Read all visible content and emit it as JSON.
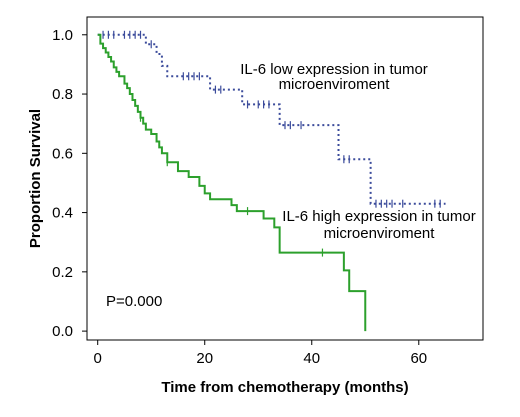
{
  "chart_data": {
    "type": "line",
    "subtype": "kaplan-meier step curve with censor marks",
    "xlabel": "Time from chemotherapy (months)",
    "ylabel": "Proportion Survival",
    "xlim": [
      -2,
      72
    ],
    "ylim": [
      -0.03,
      1.06
    ],
    "x_ticks": [
      0,
      20,
      40,
      60
    ],
    "y_ticks": [
      0.0,
      0.2,
      0.4,
      0.6,
      0.8,
      1.0
    ],
    "y_tick_labels": [
      "0.0",
      "0.2",
      "0.4",
      "0.6",
      "0.8",
      "1.0"
    ],
    "grid": false,
    "legend": "none",
    "series": [
      {
        "name": "IL-6 low expression in tumor microenviroment",
        "label_lines": [
          "IL-6 low expression in tumor",
          "microenviroment"
        ],
        "color": "#3b4b9b",
        "line_style": "dotted",
        "steps": [
          [
            0,
            1.0
          ],
          [
            9,
            0.968
          ],
          [
            11,
            0.935
          ],
          [
            12,
            0.895
          ],
          [
            13,
            0.86
          ],
          [
            21,
            0.815
          ],
          [
            27,
            0.765
          ],
          [
            34,
            0.695
          ],
          [
            45,
            0.58
          ],
          [
            51,
            0.43
          ],
          [
            65,
            0.43
          ]
        ],
        "censored": [
          [
            1,
            1.0
          ],
          [
            2,
            1.0
          ],
          [
            3,
            1.0
          ],
          [
            5,
            1.0
          ],
          [
            6,
            1.0
          ],
          [
            7,
            1.0
          ],
          [
            8,
            1.0
          ],
          [
            10,
            0.968
          ],
          [
            16,
            0.86
          ],
          [
            17,
            0.86
          ],
          [
            18,
            0.86
          ],
          [
            19,
            0.86
          ],
          [
            22,
            0.815
          ],
          [
            23,
            0.815
          ],
          [
            28,
            0.765
          ],
          [
            30,
            0.765
          ],
          [
            31,
            0.765
          ],
          [
            32,
            0.765
          ],
          [
            35,
            0.695
          ],
          [
            36,
            0.695
          ],
          [
            38,
            0.695
          ],
          [
            46,
            0.58
          ],
          [
            47,
            0.58
          ],
          [
            52,
            0.43
          ],
          [
            53,
            0.43
          ],
          [
            54,
            0.43
          ],
          [
            55,
            0.43
          ],
          [
            57,
            0.43
          ],
          [
            63,
            0.43
          ],
          [
            64,
            0.43
          ]
        ]
      },
      {
        "name": "IL-6 high expression in tumor microenviroment",
        "label_lines": [
          "IL-6 high expression in tumor",
          "microenviroment"
        ],
        "color": "#2ca02c",
        "line_style": "solid",
        "steps": [
          [
            0,
            1.0
          ],
          [
            0.5,
            0.97
          ],
          [
            1,
            0.955
          ],
          [
            1.5,
            0.94
          ],
          [
            2,
            0.925
          ],
          [
            2.5,
            0.91
          ],
          [
            3,
            0.89
          ],
          [
            3.5,
            0.875
          ],
          [
            4,
            0.86
          ],
          [
            5,
            0.835
          ],
          [
            5.5,
            0.82
          ],
          [
            6,
            0.8
          ],
          [
            6.5,
            0.78
          ],
          [
            7,
            0.76
          ],
          [
            7.5,
            0.74
          ],
          [
            8,
            0.72
          ],
          [
            8.5,
            0.7
          ],
          [
            9,
            0.68
          ],
          [
            10,
            0.665
          ],
          [
            11,
            0.64
          ],
          [
            11.5,
            0.62
          ],
          [
            12,
            0.6
          ],
          [
            13,
            0.57
          ],
          [
            15,
            0.54
          ],
          [
            17,
            0.52
          ],
          [
            19,
            0.49
          ],
          [
            20,
            0.465
          ],
          [
            21,
            0.445
          ],
          [
            25,
            0.425
          ],
          [
            26,
            0.405
          ],
          [
            31,
            0.38
          ],
          [
            33,
            0.35
          ],
          [
            34,
            0.265
          ],
          [
            46,
            0.205
          ],
          [
            47,
            0.135
          ],
          [
            50,
            0.0
          ]
        ],
        "censored": [
          [
            8,
            0.72
          ],
          [
            13,
            0.57
          ],
          [
            28,
            0.405
          ],
          [
            42,
            0.265
          ]
        ]
      }
    ],
    "annotations": [
      {
        "text": "P=0.000",
        "x": 2,
        "y": 0.07
      }
    ]
  }
}
